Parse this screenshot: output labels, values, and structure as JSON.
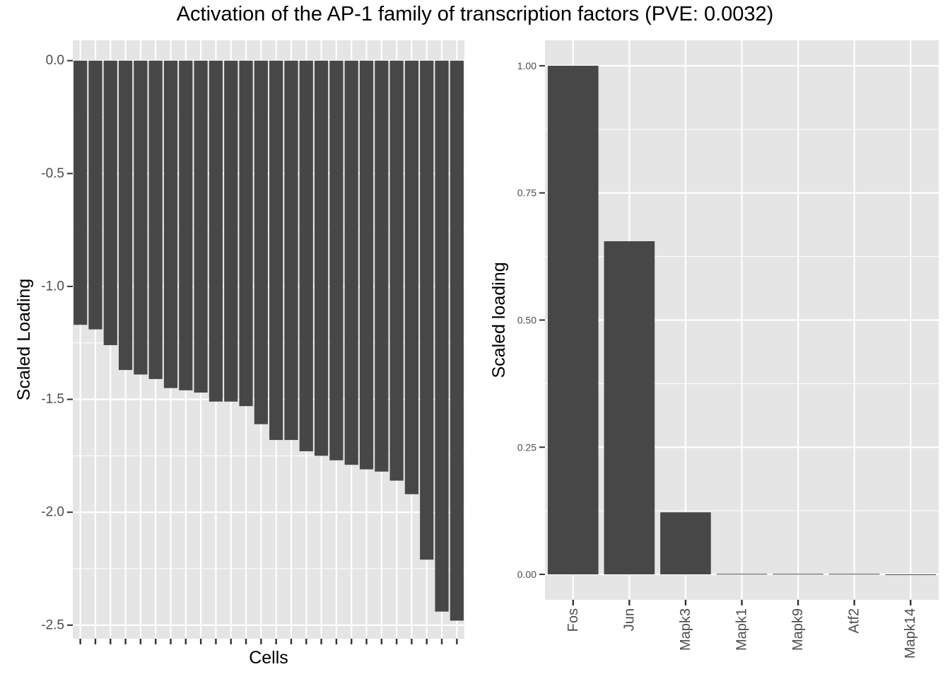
{
  "title": "Activation of the AP-1 family of transcription factors (PVE: 0.0032)",
  "colors": {
    "panel_background": "#e5e5e5",
    "grid_major": "#ffffff",
    "bar_fill": "#474747",
    "tick_text": "#4d4d4d",
    "tick_mark": "#333333"
  },
  "chart_data": [
    {
      "type": "bar",
      "xlabel": "Cells",
      "ylabel": "Scaled Loading",
      "ylim": [
        -2.56,
        0.09
      ],
      "yticks": [
        0.0,
        -0.5,
        -1.0,
        -1.5,
        -2.0,
        -2.5
      ],
      "ytick_labels": [
        "0.0",
        "-0.5",
        "-1.0",
        "-1.5",
        "-2.0",
        "-2.5"
      ],
      "x_tick_labels_shown": false,
      "grid": true,
      "values": [
        -1.17,
        -1.19,
        -1.26,
        -1.37,
        -1.39,
        -1.41,
        -1.45,
        -1.46,
        -1.47,
        -1.51,
        -1.51,
        -1.53,
        -1.61,
        -1.68,
        -1.68,
        -1.73,
        -1.75,
        -1.77,
        -1.79,
        -1.81,
        -1.82,
        -1.86,
        -1.92,
        -2.21,
        -2.44,
        -2.48
      ]
    },
    {
      "type": "bar",
      "xlabel": "",
      "ylabel": "Scaled loading",
      "ylim": [
        -0.05,
        1.05
      ],
      "yticks": [
        0.0,
        0.25,
        0.5,
        0.75,
        1.0
      ],
      "ytick_labels": [
        "0.00",
        "0.25",
        "0.50",
        "0.75",
        "1.00"
      ],
      "grid": true,
      "categories": [
        "Fos",
        "Jun",
        "Mapk3",
        "Mapk1",
        "Mapk9",
        "Atf2",
        "Mapk14"
      ],
      "values": [
        1.0,
        0.655,
        0.122,
        0.001,
        0.001,
        0.001,
        0.0
      ]
    }
  ]
}
